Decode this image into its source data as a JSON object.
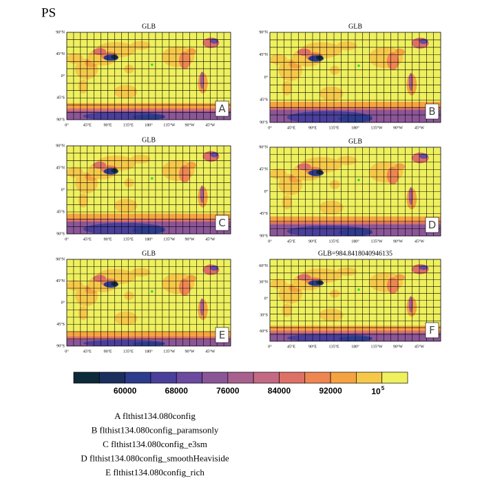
{
  "title": "PS",
  "panels": [
    {
      "title": "GLB",
      "label": "A",
      "yticks": [
        "90°N",
        "45°N",
        "0°",
        "45°S",
        "90°S"
      ],
      "xticks": [
        "0°",
        "45°E",
        "90°E",
        "135°E",
        "180°",
        "135°W",
        "90°W",
        "45°W"
      ]
    },
    {
      "title": "GLB",
      "label": "B",
      "yticks": [
        "90°N",
        "45°N",
        "0°",
        "45°S",
        "90°S"
      ],
      "xticks": [
        "0°",
        "45°E",
        "90°E",
        "135°E",
        "180°",
        "135°W",
        "90°W",
        "45°W"
      ]
    },
    {
      "title": "GLB",
      "label": "C",
      "yticks": [
        "90°N",
        "45°N",
        "0°",
        "45°S",
        "90°S"
      ],
      "xticks": [
        "0°",
        "45°E",
        "90°E",
        "135°E",
        "180°",
        "135°W",
        "90°W",
        "45°W"
      ]
    },
    {
      "title": "GLB",
      "label": "D",
      "yticks": [
        "90°N",
        "45°N",
        "0°",
        "45°S",
        "90°S"
      ],
      "xticks": [
        "0°",
        "45°E",
        "90°E",
        "135°E",
        "180°",
        "135°W",
        "90°W",
        "45°W"
      ]
    },
    {
      "title": "GLB",
      "label": "E",
      "yticks": [
        "90°N",
        "45°N",
        "0°",
        "45°S",
        "90°S"
      ],
      "xticks": [
        "0°",
        "45°E",
        "90°E",
        "135°E",
        "180°",
        "135°W",
        "90°W",
        "45°W"
      ]
    },
    {
      "title": "GLB=984.8418040946135",
      "label": "F",
      "yticks": [
        "60°N",
        "30°N",
        "0°",
        "30°S",
        "60°S"
      ],
      "xticks": [
        "0°",
        "45°E",
        "90°E",
        "135°E",
        "180°",
        "135°W",
        "90°W",
        "45°W"
      ]
    }
  ],
  "colorbar": {
    "colors": [
      "#0d2a38",
      "#1b2f5f",
      "#2c3b8c",
      "#4a3f9b",
      "#6b4a9f",
      "#8b5698",
      "#a8608e",
      "#c46a84",
      "#dd7166",
      "#ee8652",
      "#f5a341",
      "#f6c849",
      "#eef05e"
    ],
    "labels": [
      "60000",
      "68000",
      "76000",
      "84000",
      "92000"
    ],
    "last_label": {
      "base": "10",
      "exp": "5"
    }
  },
  "legend": [
    "A  flthist134.080config",
    "B  flthist134.080config_paramsonly",
    "C  flthist134.080config_e3sm",
    "D  flthist134.080config_smoothHeaviside",
    "E  flthist134.080config_rich"
  ]
}
